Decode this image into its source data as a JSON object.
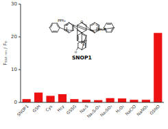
{
  "chart_data": {
    "type": "bar",
    "categories": [
      "SNOP1",
      "GSH",
      "Cys",
      "Hcy",
      "GSSG",
      "Na₂S",
      "Na₂S₂O₃",
      "Na₂SO₃",
      "H₂O₂",
      "NaClO",
      "NaNO₂",
      "GSNO"
    ],
    "values": [
      1.0,
      3.0,
      2.0,
      2.5,
      1.0,
      0.8,
      0.7,
      1.3,
      1.2,
      0.8,
      0.8,
      21.2
    ],
    "color": "#EE1111",
    "ylabel": "F₅₁₈ ₙₘ / F₀",
    "ylim": [
      0,
      30
    ],
    "yticks": [
      0,
      10,
      20,
      30
    ],
    "grid": false,
    "annotations": [
      "O",
      "O",
      "O",
      "O",
      "O",
      "PPh₂",
      "O",
      "O",
      "Ph₂P",
      "SNOP1"
    ]
  }
}
